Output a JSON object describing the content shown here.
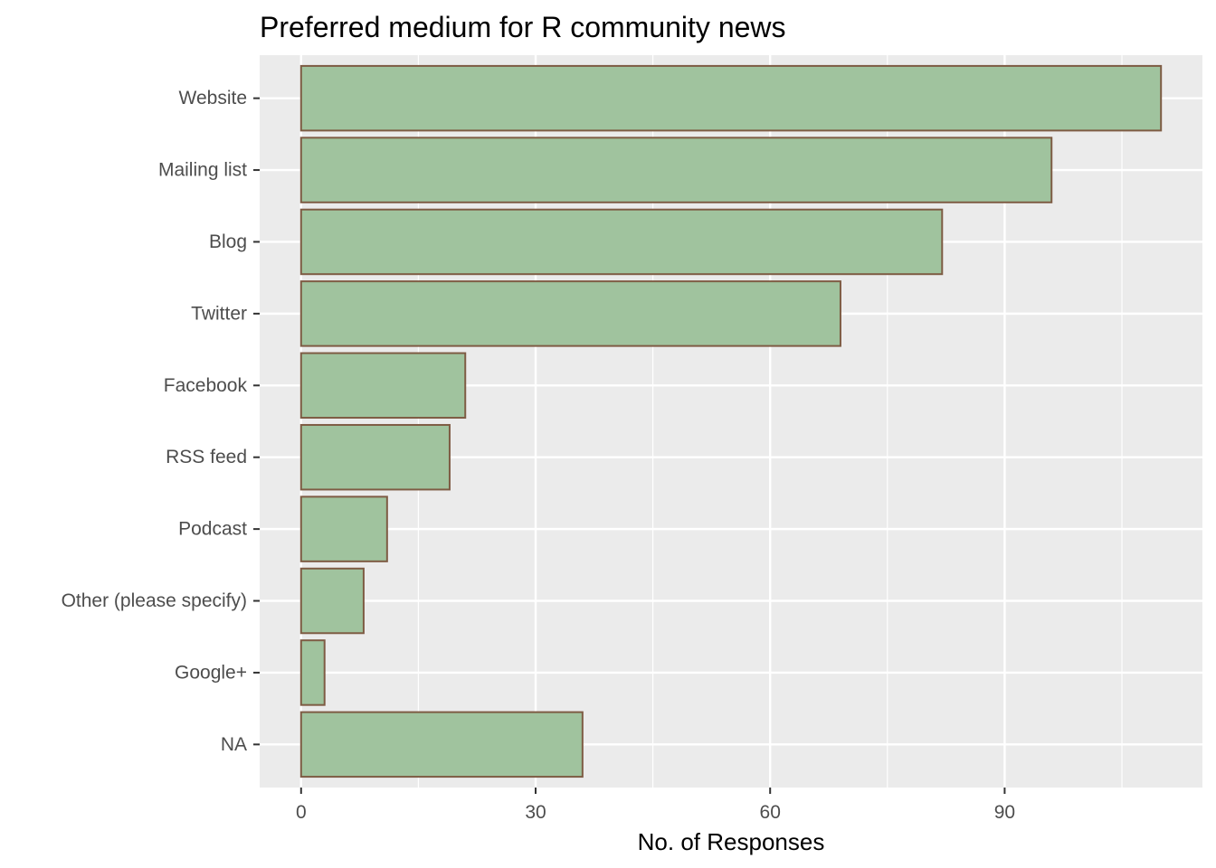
{
  "chart_data": {
    "type": "bar",
    "orientation": "horizontal",
    "title": "Preferred medium for R community news",
    "xlabel": "No. of Responses",
    "ylabel": "",
    "categories": [
      "Website",
      "Mailing list",
      "Blog",
      "Twitter",
      "Facebook",
      "RSS feed",
      "Podcast",
      "Other (please specify)",
      "Google+",
      "NA"
    ],
    "values": [
      110,
      96,
      82,
      69,
      21,
      19,
      11,
      8,
      3,
      36
    ],
    "xlim": [
      -5.3,
      115.3
    ],
    "x_ticks": [
      0,
      30,
      60,
      90
    ],
    "x_tick_labels": [
      "0",
      "30",
      "60",
      "90"
    ],
    "grid": true,
    "legend": "none",
    "colors": {
      "bar_fill": "#a0c39e",
      "bar_outline": "#7e5c44",
      "panel_background": "#ebebeb",
      "grid_line": "#ffffff",
      "tick_text": "#4d4d4d",
      "tick_mark": "#333333",
      "title_text": "#000000"
    }
  }
}
